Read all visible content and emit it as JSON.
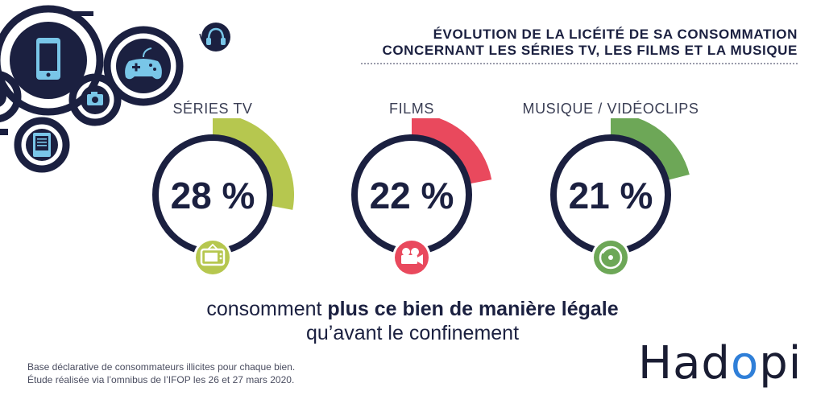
{
  "title": {
    "line1": "ÉVOLUTION DE LA LICÉITÉ DE SA CONSOMMATION",
    "line2": "CONCERNANT LES SÉRIES TV, LES FILMS ET LA MUSIQUE"
  },
  "chart_data": {
    "type": "pie",
    "title": "ÉVOLUTION DE LA LICÉITÉ DE SA CONSOMMATION CONCERNANT LES SÉRIES TV, LES FILMS ET LA MUSIQUE",
    "categories": [
      "SÉRIES TV",
      "FILMS",
      "MUSIQUE / VIDÉOCLIPS"
    ],
    "values": [
      28,
      22,
      21
    ],
    "value_labels": [
      "28 %",
      "22 %",
      "21 %"
    ],
    "unit": "%",
    "colors": [
      "#b6c74f",
      "#e9495d",
      "#6da757"
    ],
    "icons": [
      "tv-icon",
      "film-camera-icon",
      "music-disc-icon"
    ]
  },
  "caption": {
    "prefix": "consomment ",
    "bold": "plus ce bien de manière légale",
    "line2": "qu’avant le confinement"
  },
  "notes": {
    "line1": "Base déclarative de consommateurs illicites pour chaque bien.",
    "line2": "Étude réalisée via l’omnibus de l’IFOP les 26 et 27 mars 2020."
  },
  "brand": {
    "part1": "Had",
    "part2": "o",
    "part3": "pi"
  },
  "theme": {
    "navy": "#1b2040",
    "deco_light": "#79c6e8"
  },
  "decor_icons": [
    "phone-icon",
    "gamepad-icon",
    "camera-icon",
    "ereader-icon",
    "headphones-icon"
  ]
}
